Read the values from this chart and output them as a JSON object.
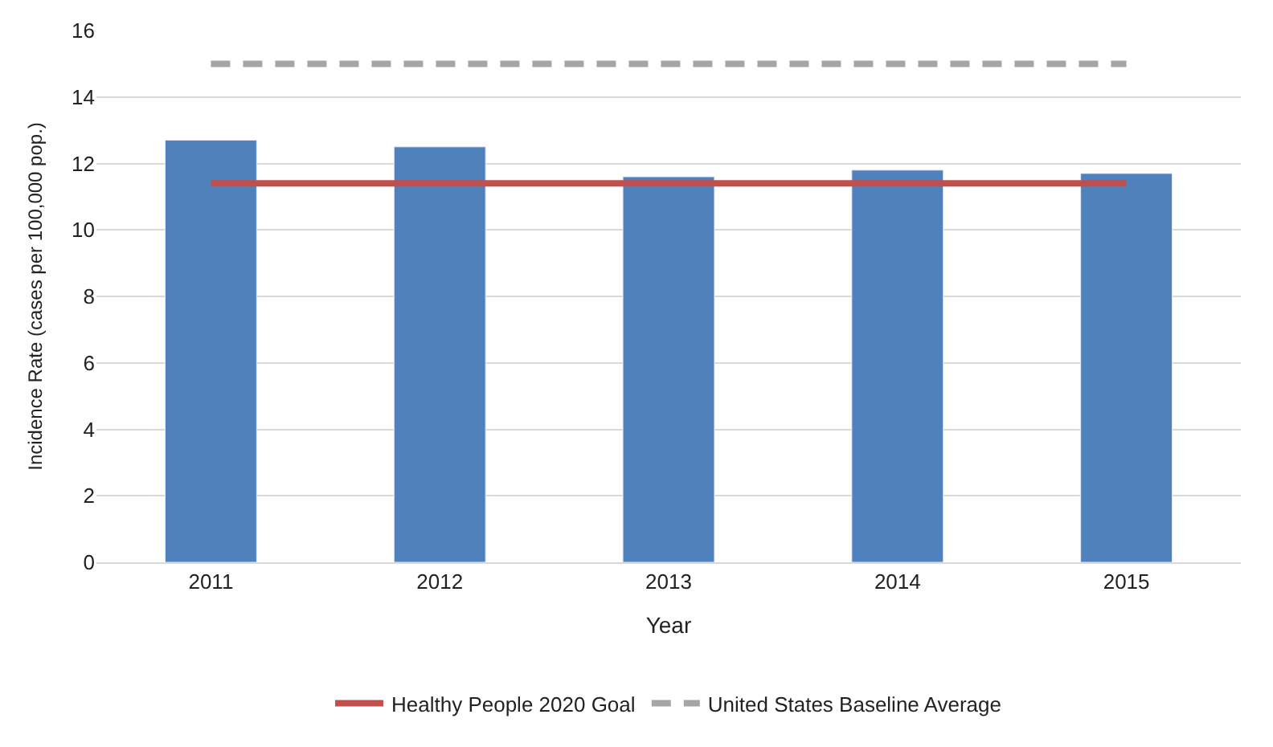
{
  "chart_data": {
    "type": "bar",
    "xlabel": "Year",
    "ylabel": "Incidence Rate (cases per 100,000 pop.)",
    "categories": [
      "2011",
      "2012",
      "2013",
      "2014",
      "2015"
    ],
    "series": [
      {
        "color": "#4f81bd",
        "values": [
          12.7,
          12.5,
          11.6,
          11.8,
          11.7
        ]
      },
      {
        "type": "line",
        "name": "Healthy People 2020 Goal",
        "color": "#c0504d",
        "line_style": "solid",
        "values": [
          11.4,
          11.4,
          11.4,
          11.4,
          11.4
        ]
      },
      {
        "type": "line",
        "name": "United States Baseline Average",
        "color": "#a5a5a5",
        "line_style": "dashed",
        "values": [
          15,
          15,
          15,
          15,
          15
        ]
      }
    ],
    "ylim": [
      0,
      16
    ],
    "yticks": [
      0,
      2,
      4,
      6,
      8,
      10,
      12,
      14,
      16
    ],
    "grid": "y",
    "legend": "bottom",
    "marker": "none"
  }
}
